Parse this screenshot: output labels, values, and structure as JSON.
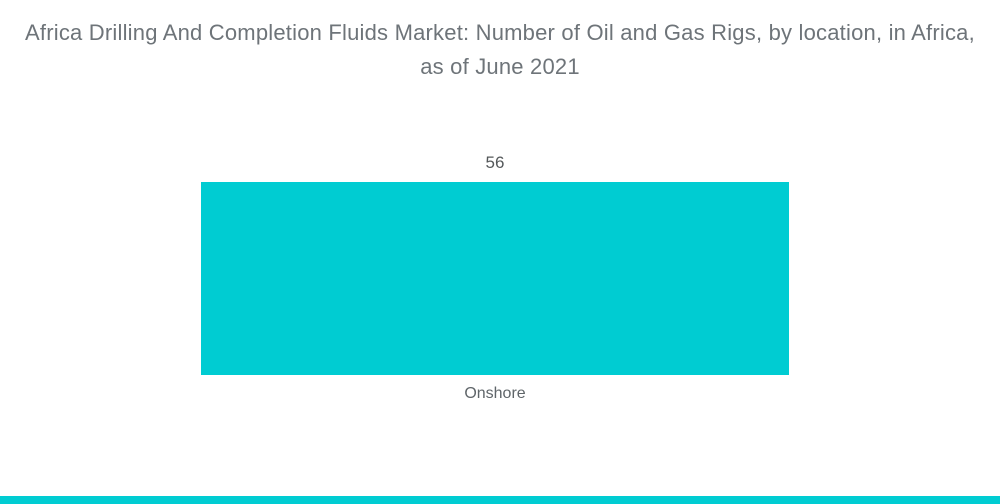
{
  "title": "Africa Drilling And Completion Fluids Market: Number of Oil and Gas Rigs, by location, in Africa, as of June 2021",
  "chart_data": {
    "type": "bar",
    "title": "Africa Drilling And Completion Fluids Market: Number of Oil and Gas Rigs, by location, in Africa, as of June 2021",
    "categories": [
      "Onshore"
    ],
    "values": [
      56
    ],
    "series": [
      {
        "name": "Number of Oil and Gas Rigs",
        "values": [
          56
        ]
      }
    ],
    "xlabel": "",
    "ylabel": "",
    "grid": false,
    "legend": false,
    "axes_visible": false,
    "value_labels_shown": true,
    "orientation": "vertical"
  },
  "labels": {
    "bar_value": "56",
    "category": "Onshore"
  },
  "colors": {
    "bar": "#00ccd2",
    "footer_accent": "#00ccd2",
    "title_text": "#6e7479",
    "value_text": "#54585a",
    "category_text": "#5f6569",
    "background": "#ffffff"
  }
}
